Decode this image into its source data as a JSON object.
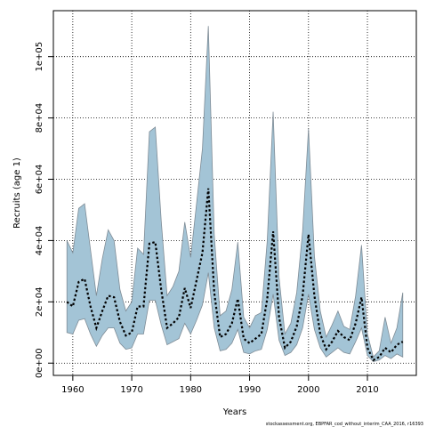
{
  "chart_data": {
    "type": "area",
    "xlabel": "Years",
    "ylabel": "Recruits (age 1)",
    "caption": "stockassessment.org, EBPFAR_cod_without_interim_CAA_2016, r16393",
    "xlim": [
      1956.7,
      2018.3
    ],
    "ylim": [
      -4000,
      115000
    ],
    "x_ticks": [
      1960,
      1970,
      1980,
      1990,
      2000,
      2010
    ],
    "x_tick_labels": [
      "1960",
      "1970",
      "1980",
      "1990",
      "2000",
      "2010"
    ],
    "y_ticks": [
      0,
      20000,
      40000,
      60000,
      80000,
      100000
    ],
    "y_tick_labels": [
      "0e+00",
      "2e+04",
      "4e+04",
      "6e+04",
      "8e+04",
      "1e+05"
    ],
    "grid": true,
    "colors": {
      "band": "#a3c4d6",
      "band_edge": "#7f8c96",
      "median": "#000000",
      "grid": "#000000"
    },
    "years": [
      1959,
      1960,
      1961,
      1962,
      1963,
      1964,
      1965,
      1966,
      1967,
      1968,
      1969,
      1970,
      1971,
      1972,
      1973,
      1974,
      1975,
      1976,
      1977,
      1978,
      1979,
      1980,
      1981,
      1982,
      1983,
      1984,
      1985,
      1986,
      1987,
      1988,
      1989,
      1990,
      1991,
      1992,
      1993,
      1994,
      1995,
      1996,
      1997,
      1998,
      1999,
      2000,
      2001,
      2002,
      2003,
      2004,
      2005,
      2006,
      2007,
      2008,
      2009,
      2010,
      2011,
      2012,
      2013,
      2014,
      2015,
      2016
    ],
    "series": [
      {
        "role": "estimate",
        "values": [
          20000,
          18500,
          26500,
          27500,
          18500,
          11500,
          17000,
          22000,
          21500,
          13500,
          9000,
          10000,
          18500,
          18500,
          39000,
          39500,
          24000,
          11500,
          13000,
          15000,
          24500,
          18000,
          27000,
          36000,
          57000,
          23000,
          8500,
          9500,
          13000,
          21000,
          8000,
          6500,
          8000,
          9500,
          21000,
          43000,
          15000,
          5000,
          7000,
          12000,
          22000,
          42000,
          22000,
          9500,
          4500,
          7000,
          10500,
          8500,
          7500,
          13000,
          21500,
          5000,
          1000,
          2000,
          5000,
          3500,
          6000,
          7000
        ]
      },
      {
        "role": "upper",
        "values": [
          40000,
          36000,
          50500,
          52000,
          37000,
          22000,
          34000,
          43500,
          40000,
          24000,
          17000,
          20000,
          37500,
          35500,
          75500,
          77000,
          46500,
          22000,
          25000,
          30000,
          46000,
          34500,
          52000,
          70000,
          110000,
          42000,
          15500,
          17000,
          24000,
          39500,
          15000,
          11500,
          15500,
          16500,
          40000,
          82000,
          28000,
          9500,
          13000,
          23000,
          43000,
          76500,
          35000,
          17000,
          8500,
          12500,
          17000,
          12000,
          11000,
          22000,
          38500,
          9500,
          2000,
          4000,
          15000,
          6500,
          11500,
          23000
        ]
      },
      {
        "role": "lower",
        "values": [
          10000,
          9500,
          14000,
          14500,
          9500,
          5500,
          9000,
          11500,
          11500,
          6500,
          4500,
          5000,
          9500,
          9500,
          20500,
          20500,
          12500,
          6000,
          7000,
          8000,
          13000,
          9500,
          14000,
          19000,
          29500,
          11500,
          4000,
          4500,
          6500,
          11000,
          3500,
          3000,
          4000,
          4500,
          11000,
          22500,
          7500,
          2500,
          3500,
          6000,
          11500,
          22500,
          11000,
          5000,
          2000,
          3500,
          5000,
          3500,
          3000,
          7000,
          11500,
          2500,
          500,
          1000,
          2500,
          1500,
          3000,
          2000
        ]
      }
    ]
  }
}
